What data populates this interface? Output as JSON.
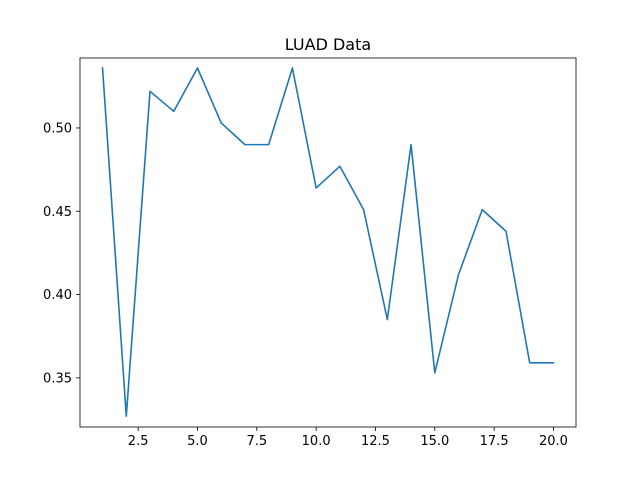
{
  "chart_data": {
    "type": "line",
    "title": "LUAD Data",
    "xlabel": "",
    "ylabel": "",
    "xlim": [
      0.05,
      20.95
    ],
    "ylim": [
      0.3205,
      0.542
    ],
    "x_ticks": [
      2.5,
      5.0,
      7.5,
      10.0,
      12.5,
      15.0,
      17.5,
      20.0
    ],
    "x_tick_labels": [
      "2.5",
      "5.0",
      "7.5",
      "10.0",
      "12.5",
      "15.0",
      "17.5",
      "20.0"
    ],
    "y_ticks": [
      0.35,
      0.4,
      0.45,
      0.5
    ],
    "y_tick_labels": [
      "0.35",
      "0.40",
      "0.45",
      "0.50"
    ],
    "grid": false,
    "series": [
      {
        "color": "#1f77b4",
        "x": [
          1,
          2,
          3,
          4,
          5,
          6,
          7,
          8,
          9,
          10,
          11,
          12,
          13,
          14,
          15,
          16,
          17,
          18,
          19,
          20
        ],
        "values": [
          0.536,
          0.327,
          0.522,
          0.51,
          0.536,
          0.503,
          0.49,
          0.49,
          0.536,
          0.464,
          0.477,
          0.451,
          0.385,
          0.49,
          0.353,
          0.412,
          0.451,
          0.438,
          0.359,
          0.359
        ]
      }
    ]
  }
}
